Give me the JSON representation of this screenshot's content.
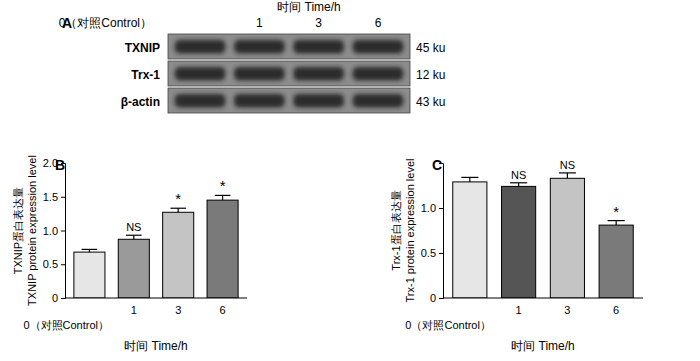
{
  "chart_data": [
    {
      "type": "blot",
      "title": "A",
      "x_label": "时间 Time/h",
      "categories": [
        "0（对照Control）",
        "1",
        "3",
        "6"
      ],
      "rows": [
        "TXNIP",
        "Trx-1",
        "β-actin"
      ],
      "sizes": [
        "45 ku",
        "12 ku",
        "43 ku"
      ]
    },
    {
      "type": "bar",
      "title": "B",
      "y_label": [
        "TXNIP蛋白表达量",
        "TXNIP protein expression level"
      ],
      "x_label": "时间 Time/h",
      "categories": [
        "0（对照Control）",
        "1",
        "3",
        "6"
      ],
      "values": [
        0.68,
        0.87,
        1.27,
        1.45
      ],
      "errors": [
        0.04,
        0.06,
        0.06,
        0.07
      ],
      "annotations": [
        null,
        "NS",
        "*",
        "*"
      ],
      "colors": [
        "#e6e6e6",
        "#9a9a9a",
        "#c4c4c4",
        "#7a7a7a"
      ],
      "ylim": [
        0,
        2.0
      ],
      "yticks": [
        0,
        0.5,
        {
          "value": 1.0,
          "label": "1.0"
        },
        1.5,
        {
          "value": 2.0,
          "label": "2.0"
        }
      ]
    },
    {
      "type": "bar",
      "title": "C",
      "y_label": [
        "Trx-1蛋白表达量",
        "Trx-1 protein expression level"
      ],
      "x_label": "时间 Time/h",
      "categories": [
        "0（对照Control）",
        "1",
        "3",
        "6"
      ],
      "values": [
        1.29,
        1.24,
        1.33,
        0.81
      ],
      "errors": [
        0.05,
        0.04,
        0.06,
        0.05
      ],
      "annotations": [
        null,
        "NS",
        "NS",
        "*"
      ],
      "colors": [
        "#e6e6e6",
        "#555555",
        "#c4c4c4",
        "#7a7a7a"
      ],
      "ylim": [
        0,
        1.5
      ],
      "yticks": [
        0,
        0.5,
        {
          "value": 1.0,
          "label": "1.0"
        }
      ]
    }
  ]
}
